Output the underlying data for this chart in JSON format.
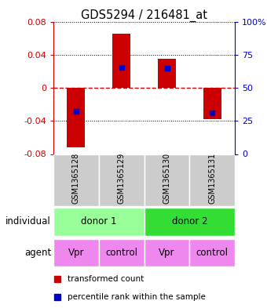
{
  "title": "GDS5294 / 216481_at",
  "categories": [
    "GSM1365128",
    "GSM1365129",
    "GSM1365130",
    "GSM1365131"
  ],
  "bar_values": [
    -0.072,
    0.065,
    0.035,
    -0.038
  ],
  "blue_dot_values": [
    -0.028,
    0.025,
    0.024,
    -0.03
  ],
  "ylim": [
    -0.08,
    0.08
  ],
  "yticks_left": [
    -0.08,
    -0.04,
    0,
    0.04,
    0.08
  ],
  "yticks_right": [
    0,
    25,
    50,
    75,
    100
  ],
  "ytick_labels_right": [
    "0",
    "25",
    "50",
    "75",
    "100%"
  ],
  "bar_color": "#cc0000",
  "blue_color": "#0000cc",
  "zero_line_color": "#cc0000",
  "left_tick_color": "#cc0000",
  "right_tick_color": "#0000cc",
  "donor1_color": "#99ff99",
  "donor2_color": "#33dd33",
  "agent_color": "#ee88ee",
  "sample_bg_color": "#cccccc",
  "individual_label": "individual",
  "agent_label": "agent",
  "legend_red": "transformed count",
  "legend_blue": "percentile rank within the sample",
  "donors": [
    [
      "donor 1",
      0,
      2
    ],
    [
      "donor 2",
      2,
      4
    ]
  ],
  "agent_row": [
    "Vpr",
    "control",
    "Vpr",
    "control"
  ]
}
